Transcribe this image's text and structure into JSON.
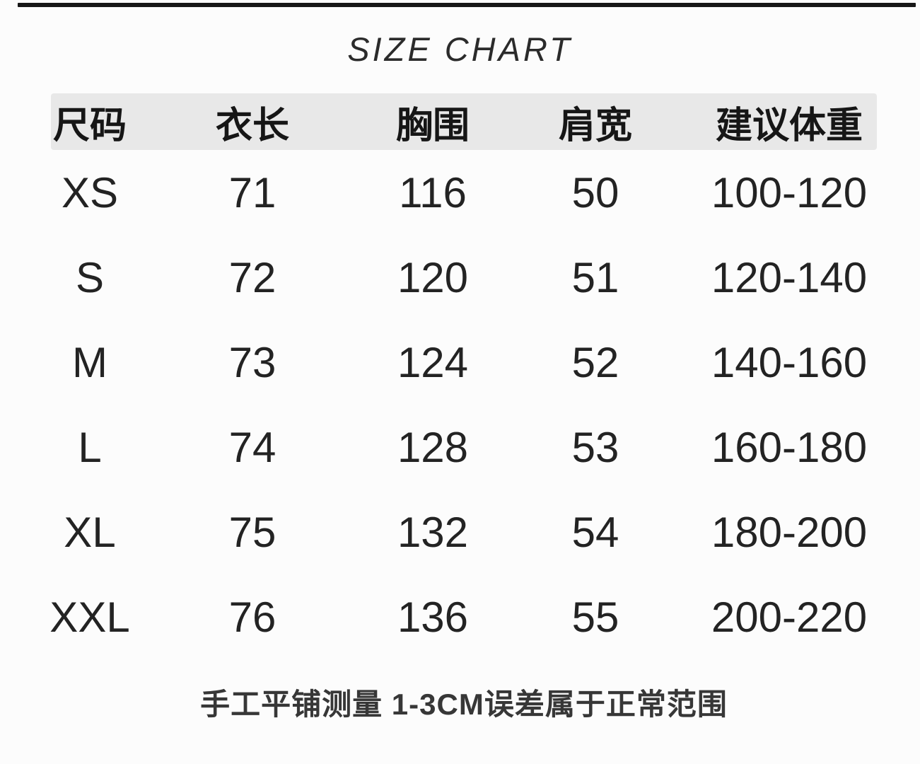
{
  "colors": {
    "background": "#fcfcfc",
    "header_band": "#e8e8e8",
    "text": "#232323",
    "top_rule": "#171717"
  },
  "chart_data": {
    "type": "table",
    "title": "SIZE CHART",
    "columns": [
      "尺码",
      "衣长",
      "胸围",
      "肩宽",
      "建议体重"
    ],
    "rows": [
      [
        "XS",
        "71",
        "116",
        "50",
        "100-120"
      ],
      [
        "S",
        "72",
        "120",
        "51",
        "120-140"
      ],
      [
        "M",
        "73",
        "124",
        "52",
        "140-160"
      ],
      [
        "L",
        "74",
        "128",
        "53",
        "160-180"
      ],
      [
        "XL",
        "75",
        "132",
        "54",
        "180-200"
      ],
      [
        "XXL",
        "76",
        "136",
        "55",
        "200-220"
      ]
    ],
    "footnote": "手工平铺测量 1-3CM误差属于正常范围"
  }
}
